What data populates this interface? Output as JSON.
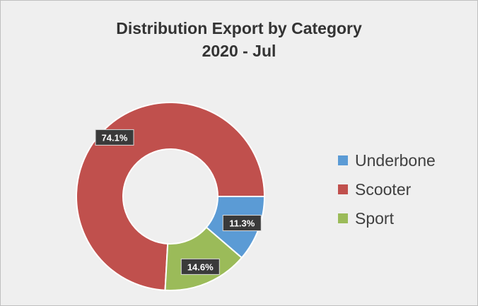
{
  "chart_data": {
    "type": "pie",
    "variant": "donut",
    "title": "Distribution Export by Category",
    "subtitle": "2020 - Jul",
    "legend_position": "right",
    "slices": [
      {
        "name": "Underbone",
        "value": 11.3,
        "label": "11.3%",
        "color": "#5b9bd5"
      },
      {
        "name": "Scooter",
        "value": 74.1,
        "label": "74.1%",
        "color": "#c0504d"
      },
      {
        "name": "Sport",
        "value": 14.6,
        "label": "14.6%",
        "color": "#9bbb59"
      }
    ]
  }
}
